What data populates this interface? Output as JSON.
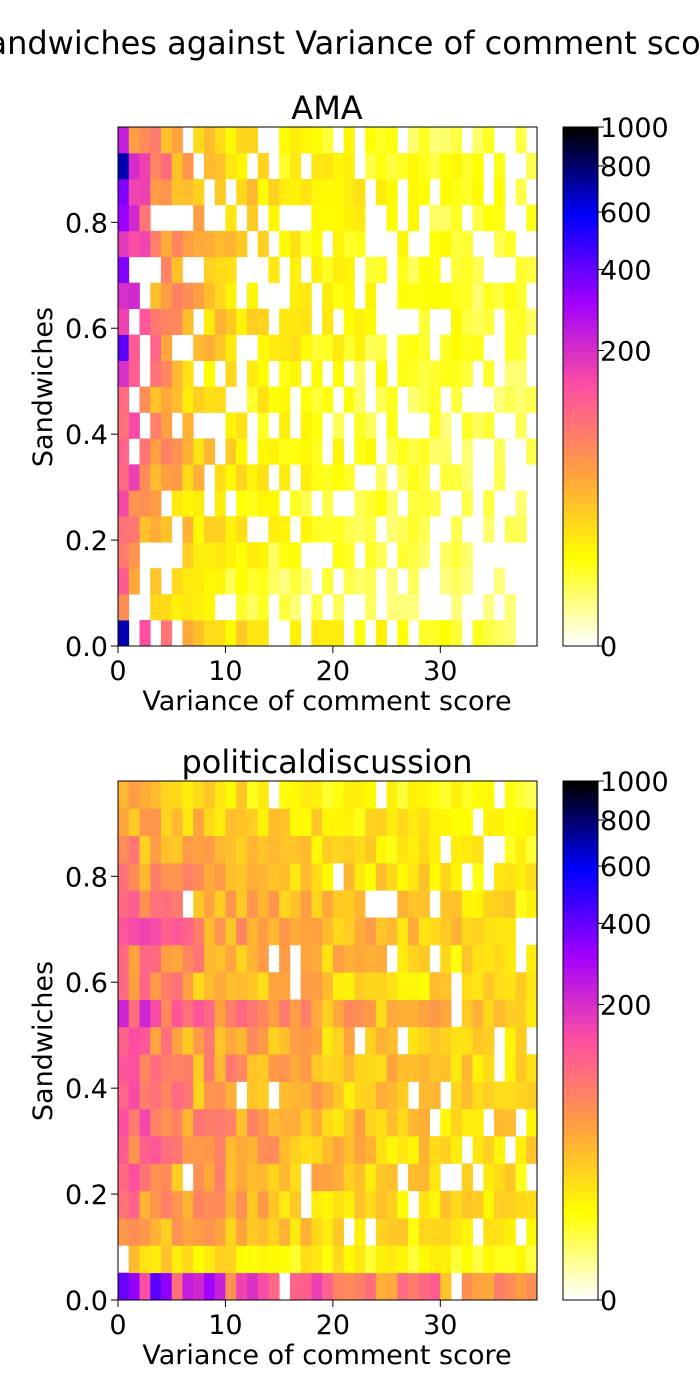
{
  "figure": {
    "suptitle": "Sandwiches against Variance of comment score"
  },
  "chart_data": [
    {
      "type": "heatmap",
      "title": "AMA",
      "xlabel": "Variance of comment score",
      "ylabel": "Sandwiches",
      "xlim": [
        0,
        39
      ],
      "ylim": [
        0,
        0.98
      ],
      "x_ticks": [
        0,
        10,
        20,
        30
      ],
      "y_ticks": [
        0.0,
        0.2,
        0.4,
        0.6,
        0.8
      ],
      "x_tick_labels": [
        "0",
        "10",
        "20",
        "30"
      ],
      "y_tick_labels": [
        "0.0",
        "0.2",
        "0.4",
        "0.6",
        "0.8"
      ],
      "colorbar": {
        "scale": "power",
        "range": [
          0,
          1000
        ],
        "ticks": [
          0,
          200,
          400,
          600,
          800,
          1000
        ],
        "tick_labels": [
          "0",
          "200",
          "400",
          "600",
          "800",
          "1000"
        ],
        "colormap": [
          "#ffffff",
          "#ffff00",
          "#ffa040",
          "#ff50a0",
          "#a000ff",
          "#0000ff",
          "#000000"
        ]
      },
      "x_bin_count": 39,
      "y_bin_count": 20,
      "column_profile": [
        1000,
        200,
        120,
        90,
        70,
        55,
        45,
        38,
        32,
        28,
        24,
        20,
        18,
        16,
        14,
        13,
        12,
        11,
        10,
        9,
        9,
        8,
        8,
        7,
        7,
        6,
        6,
        6,
        5,
        5,
        5,
        5,
        4,
        4,
        4,
        4,
        4,
        3,
        3
      ],
      "row_profile": [
        0.8,
        0.15,
        0.2,
        0.35,
        0.45,
        0.45,
        0.55,
        0.6,
        0.55,
        0.5,
        0.6,
        0.75,
        0.85,
        0.8,
        0.7,
        0.85,
        0.95,
        1.0,
        0.9,
        0.6
      ],
      "first_column": [
        700,
        60,
        120,
        80,
        90,
        150,
        100,
        110,
        90,
        100,
        200,
        420,
        160,
        200,
        360,
        180,
        320,
        360,
        700,
        240
      ]
    },
    {
      "type": "heatmap",
      "title": "politicaldiscussion",
      "xlabel": "Variance of comment score",
      "ylabel": "Sandwiches",
      "xlim": [
        0,
        39
      ],
      "ylim": [
        0,
        0.98
      ],
      "x_ticks": [
        0,
        10,
        20,
        30
      ],
      "y_ticks": [
        0.0,
        0.2,
        0.4,
        0.6,
        0.8
      ],
      "x_tick_labels": [
        "0",
        "10",
        "20",
        "30"
      ],
      "y_tick_labels": [
        "0.0",
        "0.2",
        "0.4",
        "0.6",
        "0.8"
      ],
      "colorbar": {
        "scale": "power",
        "range": [
          0,
          1000
        ],
        "ticks": [
          0,
          200,
          400,
          600,
          800,
          1000
        ],
        "tick_labels": [
          "0",
          "200",
          "400",
          "600",
          "800",
          "1000"
        ],
        "colormap": [
          "#ffffff",
          "#ffff00",
          "#ffa040",
          "#ff50a0",
          "#a000ff",
          "#0000ff",
          "#000000"
        ]
      },
      "x_bin_count": 39,
      "y_bin_count": 19,
      "column_profile": [
        110,
        90,
        80,
        72,
        66,
        60,
        56,
        52,
        48,
        45,
        42,
        40,
        38,
        36,
        34,
        32,
        31,
        30,
        29,
        28,
        27,
        26,
        25,
        24,
        23,
        22,
        21,
        20,
        19,
        18,
        18,
        17,
        16,
        15,
        15,
        14,
        14,
        13,
        13
      ],
      "row_profile": [
        4.0,
        0.35,
        0.7,
        0.9,
        1.0,
        1.1,
        1.25,
        1.05,
        1.15,
        1.05,
        1.8,
        0.95,
        1.0,
        1.25,
        0.95,
        0.8,
        0.6,
        0.5,
        0.35
      ],
      "first_column": [
        400,
        0,
        50,
        90,
        100,
        120,
        140,
        110,
        130,
        110,
        220,
        100,
        100,
        130,
        100,
        90,
        60,
        40,
        30
      ]
    }
  ]
}
